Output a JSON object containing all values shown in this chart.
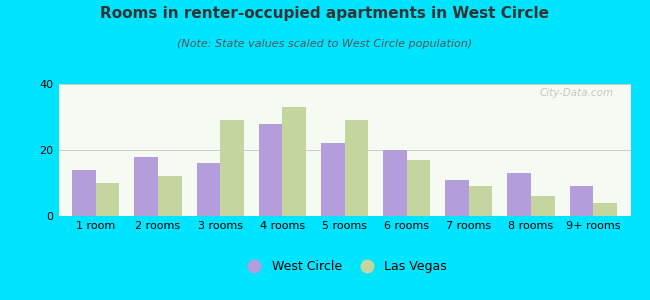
{
  "title": "Rooms in renter-occupied apartments in West Circle",
  "subtitle": "(Note: State values scaled to West Circle population)",
  "categories": [
    "1 room",
    "2 rooms",
    "3 rooms",
    "4 rooms",
    "5 rooms",
    "6 rooms",
    "7 rooms",
    "8 rooms",
    "9+ rooms"
  ],
  "west_circle": [
    14,
    18,
    16,
    28,
    22,
    20,
    11,
    13,
    9
  ],
  "las_vegas": [
    10,
    12,
    29,
    33,
    29,
    17,
    9,
    6,
    4
  ],
  "west_circle_color": "#b39ddb",
  "las_vegas_color": "#c5d5a0",
  "background_outer": "#00e5ff",
  "background_plot": "#f5faf2",
  "ylim": [
    0,
    40
  ],
  "yticks": [
    0,
    20,
    40
  ],
  "legend_west_circle": "West Circle",
  "legend_las_vegas": "Las Vegas",
  "watermark": "City-Data.com",
  "bar_width": 0.38,
  "title_fontsize": 11,
  "subtitle_fontsize": 8,
  "axis_fontsize": 8,
  "legend_fontsize": 9
}
